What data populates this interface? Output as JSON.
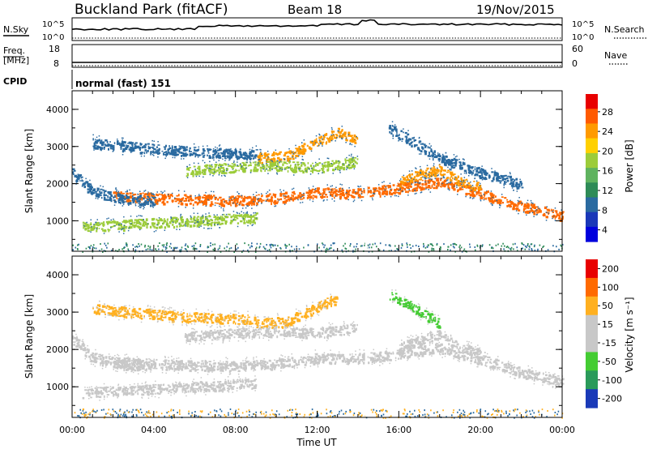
{
  "header": {
    "station": "Buckland Park (fitACF)",
    "beam": "Beam 18",
    "date": "19/Nov/2015"
  },
  "noise_panel": {
    "left_label": "N.Sky",
    "right_label": "N.Search",
    "left_ticks": [
      "10^5",
      "10^0"
    ],
    "right_ticks": [
      "10^5",
      "10^0"
    ]
  },
  "freq_panel": {
    "left_label_line1": "Freq.",
    "left_label_line2": "[MHz]",
    "right_label": "Nave",
    "left_ticks": [
      "18",
      "8"
    ],
    "right_ticks": [
      "60",
      "0"
    ]
  },
  "cpid": {
    "label": "CPID",
    "value": "normal (fast) 151"
  },
  "chart_data": [
    {
      "type": "heatmap",
      "title": "Power",
      "ylabel": "Slant Range [km]",
      "xlabel": "",
      "yticks": [
        "4000",
        "3000",
        "2000",
        "1000"
      ],
      "ylim": [
        180,
        4500
      ],
      "xlim_hours": [
        0,
        24
      ],
      "colorbar": {
        "label": "Power [dB]",
        "ticks": [
          "28",
          "24",
          "20",
          "16",
          "12",
          "8",
          "4"
        ],
        "colors": [
          "#0000dd",
          "#1a38b8",
          "#2a6aa0",
          "#2e8b57",
          "#5fb35f",
          "#9ccc3a",
          "#ffd000",
          "#ff9a00",
          "#ff5a00",
          "#e80000"
        ]
      },
      "bands": [
        {
          "name": "main",
          "color": "#ff6a00",
          "points": [
            [
              2,
              1680
            ],
            [
              5,
              1600
            ],
            [
              8,
              1560
            ],
            [
              10,
              1620
            ],
            [
              12,
              1780
            ],
            [
              13.5,
              1760
            ],
            [
              15,
              1820
            ],
            [
              17,
              1980
            ],
            [
              18,
              2050
            ],
            [
              20,
              1750
            ],
            [
              22,
              1400
            ],
            [
              24,
              1150
            ]
          ]
        },
        {
          "name": "upper",
          "color": "#ff9a00",
          "points": [
            [
              9,
              2700
            ],
            [
              10.5,
              2760
            ],
            [
              12,
              3150
            ],
            [
              13,
              3400
            ],
            [
              14,
              3200
            ]
          ]
        },
        {
          "name": "upper2",
          "color": "#9ccc3a",
          "points": [
            [
              5.5,
              2350
            ],
            [
              8,
              2450
            ],
            [
              10,
              2500
            ],
            [
              12,
              2450
            ],
            [
              14,
              2600
            ]
          ]
        },
        {
          "name": "evening",
          "color": "#ff9a00",
          "points": [
            [
              16,
              2050
            ],
            [
              17.2,
              2300
            ],
            [
              18,
              2400
            ],
            [
              19,
              2050
            ],
            [
              20,
              1900
            ]
          ]
        },
        {
          "name": "low",
          "color": "#9ccc3a",
          "points": [
            [
              0.5,
              850
            ],
            [
              4,
              950
            ],
            [
              7,
              1050
            ],
            [
              9,
              1100
            ]
          ]
        },
        {
          "name": "morning",
          "color": "#2a6aa0",
          "points": [
            [
              0,
              2300
            ],
            [
              1,
              1800
            ],
            [
              2.5,
              1600
            ],
            [
              4,
              1550
            ]
          ]
        },
        {
          "name": "high",
          "color": "#2a6aa0",
          "points": [
            [
              1,
              3100
            ],
            [
              3,
              3000
            ],
            [
              5,
              2900
            ],
            [
              7,
              2850
            ],
            [
              9,
              2800
            ]
          ]
        },
        {
          "name": "night",
          "color": "#2a6aa0",
          "points": [
            [
              15.5,
              3500
            ],
            [
              16.5,
              3200
            ],
            [
              18,
              2700
            ],
            [
              20,
              2300
            ],
            [
              22,
              2000
            ]
          ]
        }
      ]
    },
    {
      "type": "heatmap",
      "title": "Velocity",
      "xlabel": "Time UT",
      "ylabel": "Slant Range [km]",
      "yticks": [
        "4000",
        "3000",
        "2000",
        "1000"
      ],
      "xticks": [
        "00:00",
        "04:00",
        "08:00",
        "12:00",
        "16:00",
        "20:00",
        "00:00"
      ],
      "ylim": [
        180,
        4500
      ],
      "xlim_hours": [
        0,
        24
      ],
      "colorbar": {
        "label": "Velocity [m s⁻¹]",
        "ticks": [
          "200",
          "100",
          "50",
          "15",
          "-15",
          "-50",
          "-100",
          "-200"
        ],
        "colors": [
          "#1a3ab8",
          "#2a9a5a",
          "#44cc33",
          "#c8c8c8",
          "#c8c8c8",
          "#ffb020",
          "#ff6a00",
          "#e80000"
        ]
      },
      "bands": [
        {
          "name": "main",
          "color": "#c8c8c8",
          "points": [
            [
              2,
              1680
            ],
            [
              5,
              1600
            ],
            [
              8,
              1560
            ],
            [
              10,
              1620
            ],
            [
              12,
              1780
            ],
            [
              13.5,
              1760
            ],
            [
              15,
              1820
            ],
            [
              17,
              1980
            ],
            [
              18,
              2050
            ],
            [
              20,
              1750
            ],
            [
              22,
              1400
            ],
            [
              24,
              1150
            ]
          ]
        },
        {
          "name": "upper",
          "color": "#ffb020",
          "points": [
            [
              9,
              2700
            ],
            [
              10.5,
              2760
            ],
            [
              12,
              3150
            ],
            [
              13,
              3400
            ]
          ]
        },
        {
          "name": "upper2",
          "color": "#c8c8c8",
          "points": [
            [
              5.5,
              2350
            ],
            [
              8,
              2450
            ],
            [
              10,
              2500
            ],
            [
              12,
              2450
            ],
            [
              14,
              2600
            ]
          ]
        },
        {
          "name": "evening",
          "color": "#c8c8c8",
          "points": [
            [
              16,
              2050
            ],
            [
              17.2,
              2300
            ],
            [
              18,
              2400
            ],
            [
              19,
              2050
            ],
            [
              20,
              1900
            ]
          ]
        },
        {
          "name": "low",
          "color": "#c8c8c8",
          "points": [
            [
              0.5,
              850
            ],
            [
              4,
              950
            ],
            [
              7,
              1050
            ],
            [
              9,
              1100
            ]
          ]
        },
        {
          "name": "morning",
          "color": "#c8c8c8",
          "points": [
            [
              0,
              2300
            ],
            [
              1,
              1800
            ],
            [
              2.5,
              1600
            ],
            [
              4,
              1550
            ]
          ]
        },
        {
          "name": "high",
          "color": "#ffb020",
          "points": [
            [
              1,
              3100
            ],
            [
              3,
              3000
            ],
            [
              5,
              2900
            ],
            [
              7,
              2850
            ],
            [
              9,
              2800
            ]
          ]
        },
        {
          "name": "green",
          "color": "#44cc33",
          "points": [
            [
              15.5,
              3500
            ],
            [
              16.5,
              3200
            ],
            [
              18,
              2700
            ]
          ]
        }
      ]
    }
  ]
}
